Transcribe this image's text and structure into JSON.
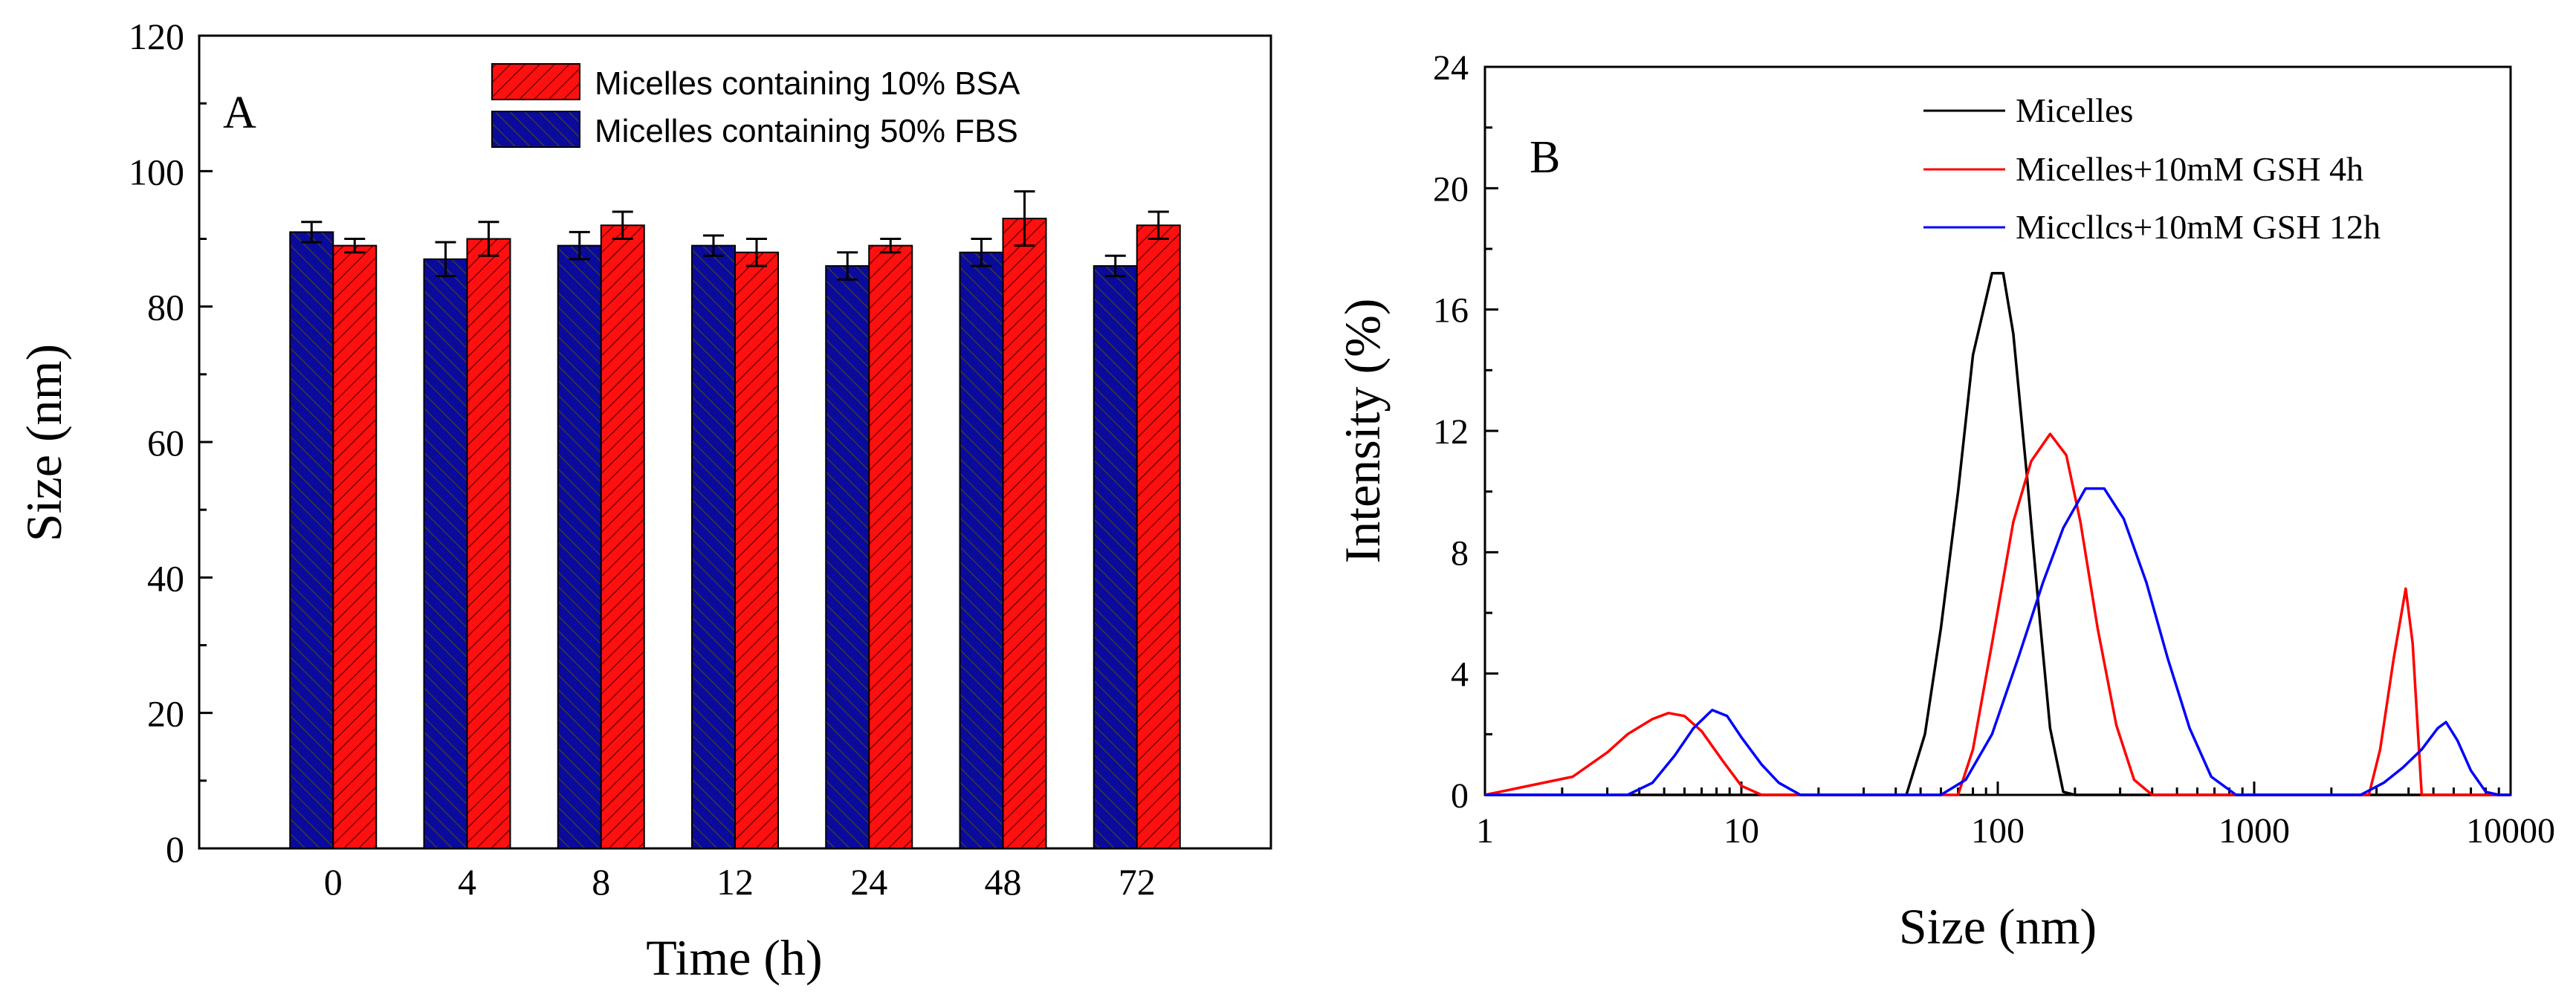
{
  "chart_data": [
    {
      "type": "bar",
      "panel_label": "A",
      "categories": [
        "0",
        "4",
        "8",
        "12",
        "24",
        "48",
        "72"
      ],
      "series": [
        {
          "name": "Micelles containing 50% FBS",
          "color": "#0a0a9c",
          "values": [
            91,
            87,
            89,
            89,
            86,
            88,
            86
          ],
          "errors": [
            1.5,
            2.5,
            2,
            1.5,
            2,
            2,
            1.5
          ]
        },
        {
          "name": "Micelles containing 10% BSA",
          "color": "#ff1010",
          "values": [
            89,
            90,
            92,
            88,
            89,
            93,
            92
          ],
          "errors": [
            1,
            2.5,
            2,
            2,
            1,
            4,
            2
          ]
        }
      ],
      "legend_order": [
        "Micelles containing 10% BSA",
        "Micelles containing 50% FBS"
      ],
      "xlabel": "Time (h)",
      "ylabel": "Size (nm)",
      "ylim": [
        0,
        120
      ],
      "yticks": [
        "0",
        "20",
        "40",
        "60",
        "80",
        "100",
        "120"
      ],
      "grid": false,
      "legend_position": "top-right"
    },
    {
      "type": "line",
      "panel_label": "B",
      "x_scale": "log",
      "xlim": [
        1,
        10000
      ],
      "ylim": [
        0,
        24
      ],
      "xticks": [
        "1",
        "10",
        "100",
        "1000",
        "10000"
      ],
      "yticks": [
        "0",
        "4",
        "8",
        "12",
        "16",
        "20",
        "24"
      ],
      "xlabel": "Size (nm)",
      "ylabel": "Intensity (%)",
      "grid": false,
      "legend_position": "top-right",
      "series": [
        {
          "name": "Micelles",
          "color": "#000000",
          "points": [
            [
              1,
              0
            ],
            [
              44,
              0
            ],
            [
              52,
              2
            ],
            [
              60,
              5.5
            ],
            [
              70,
              10
            ],
            [
              80,
              14.5
            ],
            [
              95,
              17.2
            ],
            [
              105,
              17.2
            ],
            [
              115,
              15.2
            ],
            [
              130,
              10.5
            ],
            [
              145,
              6
            ],
            [
              160,
              2.2
            ],
            [
              180,
              0.1
            ],
            [
              200,
              0
            ],
            [
              10000,
              0
            ]
          ]
        },
        {
          "name": "Micelles+10mM GSH 4h",
          "color": "#ff0000",
          "points": [
            [
              1,
              0
            ],
            [
              2.2,
              0.6
            ],
            [
              3,
              1.4
            ],
            [
              3.6,
              2
            ],
            [
              4.5,
              2.5
            ],
            [
              5.2,
              2.7
            ],
            [
              6,
              2.6
            ],
            [
              7,
              2.1
            ],
            [
              8.5,
              1.1
            ],
            [
              10,
              0.3
            ],
            [
              12,
              0
            ],
            [
              70,
              0
            ],
            [
              80,
              1.5
            ],
            [
              95,
              5
            ],
            [
              115,
              9
            ],
            [
              135,
              11
            ],
            [
              160,
              11.9
            ],
            [
              185,
              11.2
            ],
            [
              210,
              9
            ],
            [
              245,
              5.5
            ],
            [
              290,
              2.3
            ],
            [
              340,
              0.5
            ],
            [
              400,
              0
            ],
            [
              2800,
              0
            ],
            [
              3100,
              1.5
            ],
            [
              3500,
              4.5
            ],
            [
              3900,
              6.8
            ],
            [
              4150,
              5
            ],
            [
              4500,
              0
            ],
            [
              10000,
              0
            ]
          ]
        },
        {
          "name": "Miccllcs+10mM GSH 12h",
          "color": "#0000ff",
          "points": [
            [
              1,
              0
            ],
            [
              3.6,
              0
            ],
            [
              4.5,
              0.4
            ],
            [
              5.5,
              1.3
            ],
            [
              6.5,
              2.2
            ],
            [
              7.7,
              2.8
            ],
            [
              8.8,
              2.6
            ],
            [
              10,
              1.9
            ],
            [
              12,
              1
            ],
            [
              14,
              0.4
            ],
            [
              17,
              0
            ],
            [
              45,
              0
            ],
            [
              60,
              0
            ],
            [
              75,
              0.5
            ],
            [
              95,
              2
            ],
            [
              120,
              4.5
            ],
            [
              150,
              7
            ],
            [
              180,
              8.8
            ],
            [
              220,
              10.1
            ],
            [
              260,
              10.1
            ],
            [
              310,
              9.1
            ],
            [
              380,
              7
            ],
            [
              460,
              4.5
            ],
            [
              560,
              2.2
            ],
            [
              680,
              0.6
            ],
            [
              850,
              0
            ],
            [
              2600,
              0
            ],
            [
              3200,
              0.4
            ],
            [
              3800,
              0.9
            ],
            [
              4500,
              1.5
            ],
            [
              5200,
              2.2
            ],
            [
              5600,
              2.4
            ],
            [
              6200,
              1.8
            ],
            [
              7000,
              0.8
            ],
            [
              8000,
              0.1
            ],
            [
              9000,
              0
            ],
            [
              10000,
              0
            ]
          ]
        }
      ]
    }
  ]
}
